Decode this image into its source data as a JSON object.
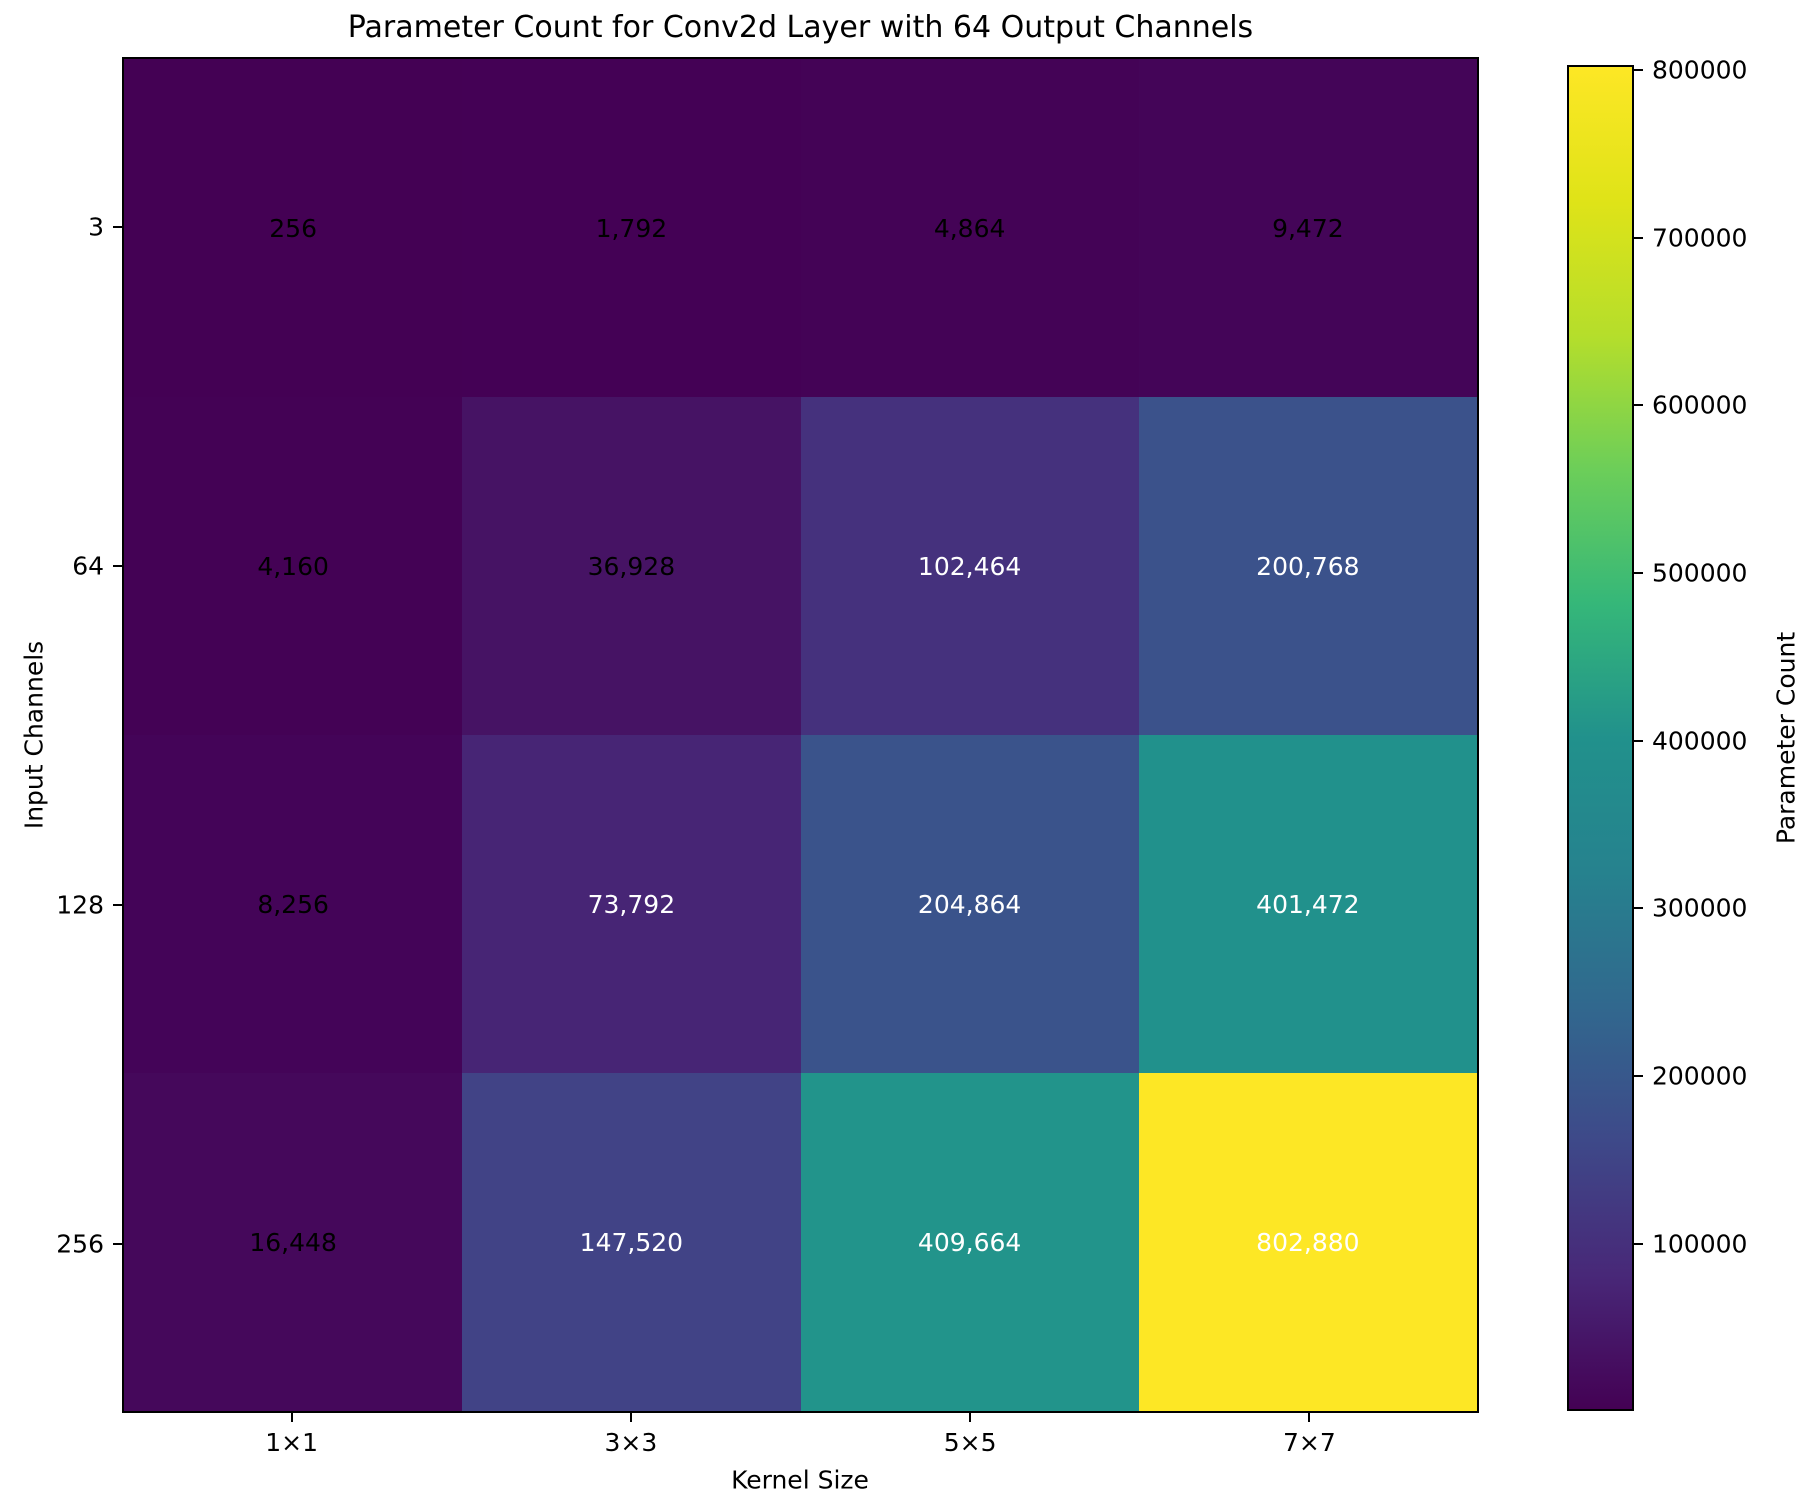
{
  "title": "Parameter Count for Conv2d Layer with 64 Output Channels",
  "chart_data": {
    "type": "heatmap",
    "title": "Parameter Count for Conv2d Layer with 64 Output Channels",
    "xlabel": "Kernel Size",
    "ylabel": "Input Channels",
    "x_categories": [
      "1×1",
      "3×3",
      "5×5",
      "7×7"
    ],
    "y_categories": [
      "3",
      "64",
      "128",
      "256"
    ],
    "values": [
      [
        256,
        1792,
        4864,
        9472
      ],
      [
        4160,
        36928,
        102464,
        200768
      ],
      [
        8256,
        73792,
        204864,
        401472
      ],
      [
        16448,
        147520,
        409664,
        802880
      ]
    ],
    "cell_labels": [
      [
        "256",
        "1,792",
        "4,864",
        "9,472"
      ],
      [
        "4,160",
        "36,928",
        "102,464",
        "200,768"
      ],
      [
        "8,256",
        "73,792",
        "204,864",
        "401,472"
      ],
      [
        "16,448",
        "147,520",
        "409,664",
        "802,880"
      ]
    ],
    "cell_colors": [
      [
        "#440154",
        "#440155",
        "#440356",
        "#440558"
      ],
      [
        "#440255",
        "#461364",
        "#45317d",
        "#3b528b"
      ],
      [
        "#440458",
        "#472575",
        "#3a538b",
        "#21918c"
      ],
      [
        "#45085b",
        "#414386",
        "#22948b",
        "#fde725"
      ]
    ],
    "cell_text_colors": [
      [
        "#000000",
        "#000000",
        "#000000",
        "#000000"
      ],
      [
        "#000000",
        "#000000",
        "#ffffff",
        "#ffffff"
      ],
      [
        "#000000",
        "#ffffff",
        "#ffffff",
        "#ffffff"
      ],
      [
        "#000000",
        "#ffffff",
        "#ffffff",
        "#ffffff"
      ]
    ],
    "colormap": "viridis",
    "grid": false,
    "colorbar": {
      "label": "Parameter Count",
      "tick_labels": [
        "800000",
        "700000",
        "600000",
        "500000",
        "400000",
        "300000",
        "200000",
        "100000"
      ],
      "tick_values": [
        800000,
        700000,
        600000,
        500000,
        400000,
        300000,
        200000,
        100000
      ],
      "vmin": 256,
      "vmax": 802880
    },
    "background_color": "#ffffff"
  }
}
